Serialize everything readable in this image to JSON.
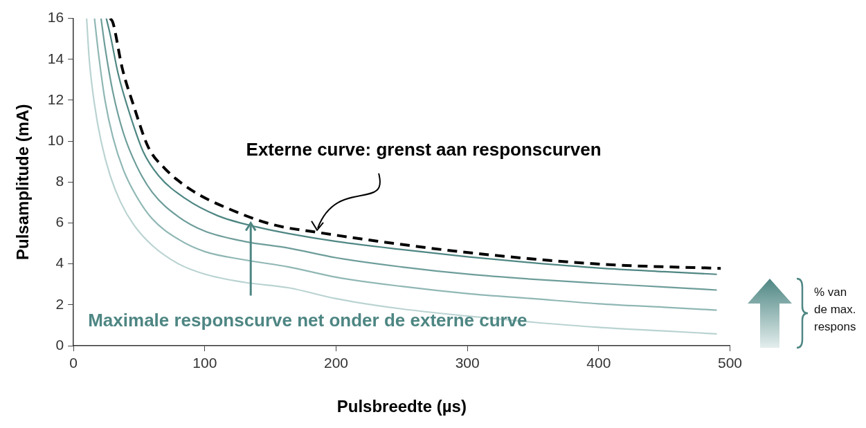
{
  "chart_data": {
    "type": "line",
    "xlabel": "Pulsbreedte (µs)",
    "ylabel": "Pulsamplitude (mA)",
    "xlim": [
      0,
      500
    ],
    "xticks": [
      0,
      100,
      200,
      300,
      400,
      500
    ],
    "ylim": [
      0,
      16
    ],
    "yticks": [
      0,
      2,
      4,
      6,
      8,
      10,
      12,
      14,
      16
    ],
    "grid": false,
    "legend": false,
    "marker": "none",
    "series": [
      {
        "color": "#b9d3d1",
        "x": [
          10,
          12,
          16,
          21,
          28,
          36,
          46,
          60,
          80,
          100,
          130,
          164,
          200,
          250,
          300,
          350,
          400,
          450,
          490
        ],
        "values": [
          16,
          14,
          11.8,
          10,
          8.3,
          7,
          5.9,
          4.9,
          4.0,
          3.5,
          3.1,
          2.83,
          2.3,
          1.8,
          1.45,
          1.15,
          0.9,
          0.72,
          0.58
        ]
      },
      {
        "color": "#8fb7b4",
        "x": [
          16,
          19,
          24,
          30,
          38,
          48,
          60,
          80,
          100,
          130,
          164,
          200,
          250,
          300,
          350,
          400,
          450,
          490
        ],
        "values": [
          16,
          14.3,
          12.0,
          10.2,
          8.6,
          7.3,
          6.2,
          5.2,
          4.6,
          4.2,
          3.85,
          3.35,
          2.9,
          2.55,
          2.3,
          2.05,
          1.88,
          1.74
        ]
      },
      {
        "color": "#6d9d9a",
        "x": [
          21,
          24,
          30,
          38,
          48,
          60,
          80,
          100,
          130,
          164,
          200,
          250,
          300,
          350,
          400,
          450,
          490
        ],
        "values": [
          16,
          14.6,
          12.4,
          10.4,
          8.8,
          7.5,
          6.3,
          5.6,
          5.1,
          4.77,
          4.3,
          3.85,
          3.5,
          3.25,
          3.05,
          2.87,
          2.72
        ]
      },
      {
        "color": "#4e8683",
        "x": [
          25,
          28,
          34,
          43,
          53,
          65,
          85,
          110,
          140,
          164,
          200,
          250,
          300,
          350,
          400,
          450,
          490
        ],
        "values": [
          16,
          15.2,
          13.3,
          11.3,
          9.5,
          8.3,
          7.2,
          6.35,
          5.8,
          5.48,
          5.1,
          4.7,
          4.35,
          4.05,
          3.8,
          3.62,
          3.49
        ]
      },
      {
        "color": "#000000",
        "line_style": "dashed",
        "x": [
          28,
          30,
          37,
          46,
          57,
          69,
          90,
          118,
          153,
          185,
          250,
          308,
          403,
          493
        ],
        "values": [
          16,
          15.8,
          13.6,
          11.7,
          9.7,
          8.7,
          7.6,
          6.7,
          5.9,
          5.55,
          4.95,
          4.5,
          3.98,
          3.78
        ]
      }
    ],
    "annotations": [
      {
        "text": "Externe curve: grenst aan responscurven",
        "x": 185,
        "y": 5.55
      },
      {
        "text": "Maximale responscurve net onder de externe curve",
        "x": 135,
        "y": 6.1
      },
      "% van de max. respons"
    ]
  }
}
